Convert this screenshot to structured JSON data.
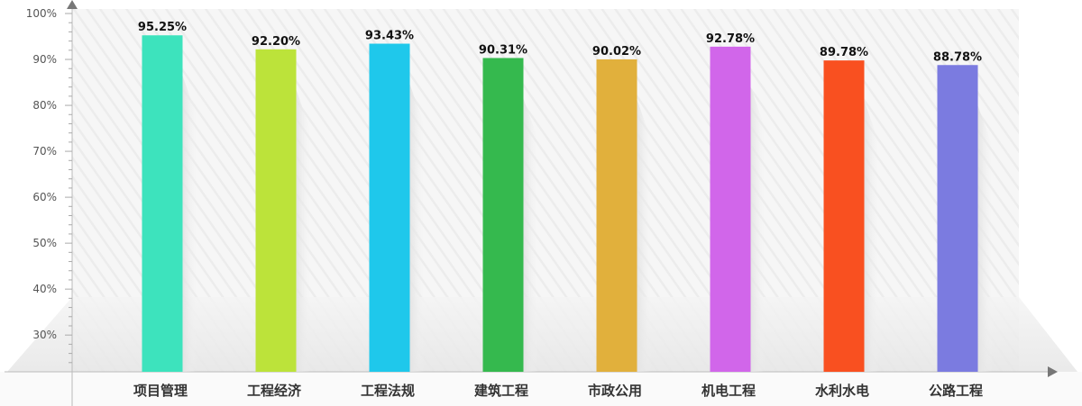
{
  "chart_data": {
    "type": "bar",
    "title": "",
    "xlabel": "",
    "ylabel": "",
    "categories": [
      "项目管理",
      "工程经济",
      "工程法规",
      "建筑工程",
      "市政公用",
      "机电工程",
      "水利水电",
      "公路工程"
    ],
    "values": [
      95.25,
      92.2,
      93.43,
      90.31,
      90.02,
      92.78,
      89.78,
      88.78
    ],
    "value_labels": [
      "95.25%",
      "92.20%",
      "93.43%",
      "90.31%",
      "90.02%",
      "92.78%",
      "89.78%",
      "88.78%"
    ],
    "colors": [
      "#3de3bd",
      "#bce33a",
      "#1fc8eb",
      "#35b94e",
      "#e1b03c",
      "#d166ea",
      "#f95020",
      "#7b7be0"
    ],
    "ylim": [
      22,
      100
    ],
    "yticks": [
      30,
      40,
      50,
      60,
      70,
      80,
      90,
      100
    ],
    "ytick_labels": [
      "30%",
      "40%",
      "50%",
      "60%",
      "70%",
      "80%",
      "90%",
      "100%"
    ],
    "grid": false,
    "legend": "none"
  }
}
